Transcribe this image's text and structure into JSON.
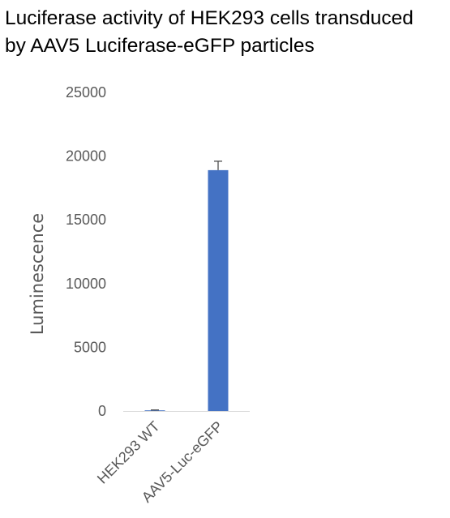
{
  "chart_data": {
    "type": "bar",
    "title_lines": [
      "Luciferase activity of HEK293 cells transduced",
      "by AAV5 Luciferase-eGFP particles"
    ],
    "xlabel": "",
    "ylabel": "Luminescence",
    "categories": [
      "HEK293 WT",
      "AAV5-Luc-eGFP"
    ],
    "values": [
      50,
      18900
    ],
    "error": [
      30,
      700
    ],
    "ylim": [
      0,
      25000
    ],
    "yticks": [
      0,
      5000,
      10000,
      15000,
      20000,
      25000
    ],
    "grid": false,
    "legend": "none",
    "bar_color": "#4472C4"
  }
}
